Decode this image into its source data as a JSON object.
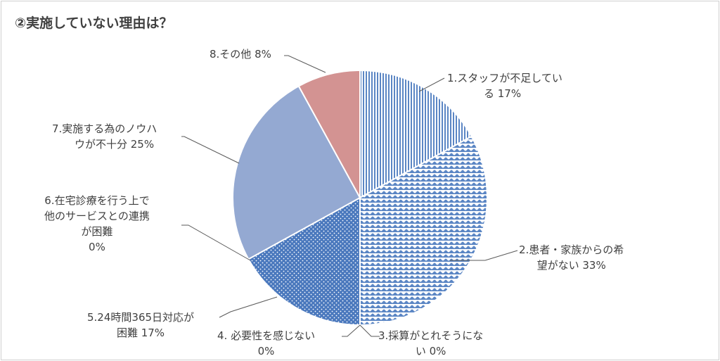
{
  "title": "②実施していない理由は？",
  "chart_data": {
    "type": "pie",
    "title": "②実施していない理由は？",
    "slices": [
      {
        "label": "1.スタッフが不足している 17%",
        "lines": [
          "1.スタッフが不足してい",
          "る  17%"
        ],
        "value": 17,
        "color": "#5b86c4",
        "pattern": "vstripe"
      },
      {
        "label": "2.患者・家族からの希望がない 33%",
        "lines": [
          "2.患者・家族からの希",
          "望がない  33%"
        ],
        "value": 33,
        "color": "#5b86c4",
        "pattern": "wave"
      },
      {
        "label": "3.採算がとれそうにない 0%",
        "lines": [
          "3.採算がとれそうにな",
          "い  0%"
        ],
        "value": 0,
        "color": "#5b86c4",
        "pattern": "solid"
      },
      {
        "label": "4. 必要性を感じない 0%",
        "lines": [
          "4. 必要性を感じない",
          "0%"
        ],
        "value": 0,
        "color": "#5b86c4",
        "pattern": "solid"
      },
      {
        "label": "5.24時間365日対応が困難 17%",
        "lines": [
          "5.24時間365日対応が",
          "困難  17%"
        ],
        "value": 17,
        "color": "#4a78bd",
        "pattern": "dots"
      },
      {
        "label": "6.在宅診療を行う上で他のサービスとの連携が困難 0%",
        "lines": [
          "6.在宅診療を行う上で",
          "他のサービスとの連携",
          "が困難",
          "0%"
        ],
        "value": 0,
        "color": "#5b86c4",
        "pattern": "solid"
      },
      {
        "label": "7.実施する為のノウハウが不十分 25%",
        "lines": [
          "7.実施する為のノウハ",
          "ウが不十分  25%"
        ],
        "value": 25,
        "color": "#94a9d2",
        "pattern": "solid"
      },
      {
        "label": "8.その他 8%",
        "lines": [
          "8.その他  8%"
        ],
        "value": 8,
        "color": "#d39392",
        "pattern": "solid"
      }
    ]
  }
}
